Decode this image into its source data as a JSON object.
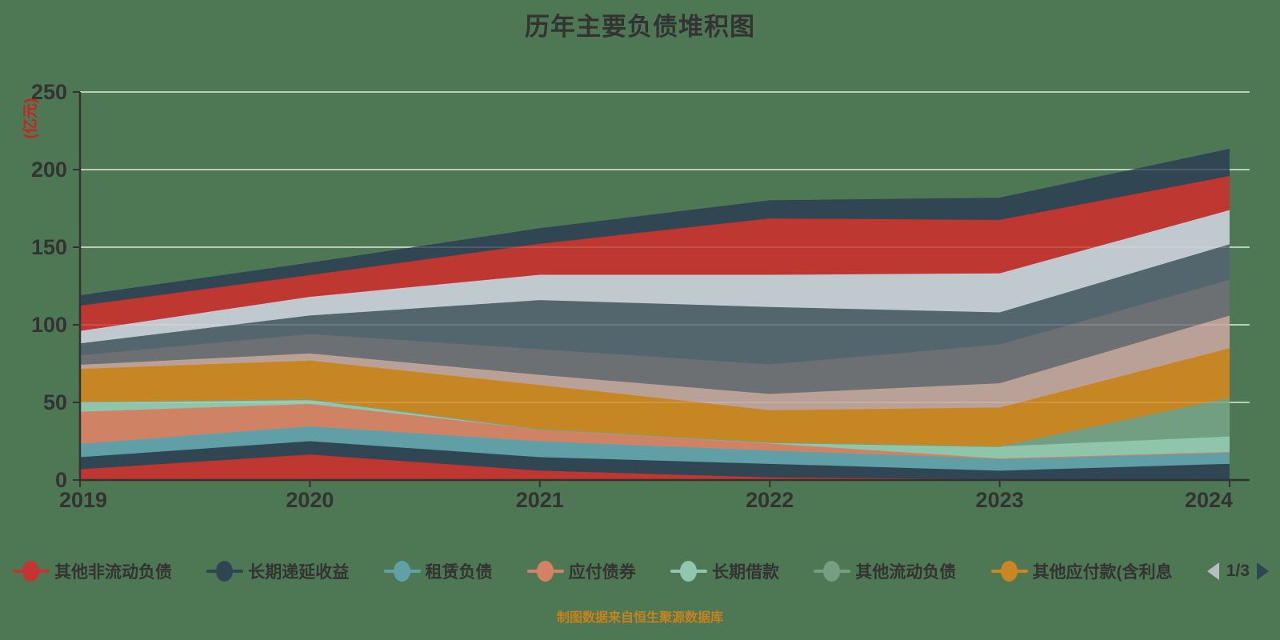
{
  "title": "历年主要负债堆积图",
  "footer_credit": "制图数据来自恒生聚源数据库",
  "y_axis": {
    "unit_label": "(亿元)",
    "unit_color": "#d01f1f",
    "ticks": [
      0,
      50,
      100,
      150,
      200,
      250
    ],
    "max": 250
  },
  "x_axis": {
    "labels": [
      "2019",
      "2020",
      "2021",
      "2022",
      "2023",
      "2024"
    ]
  },
  "legend": {
    "page_indicator": "1/3",
    "prev_icon": "left-triangle",
    "next_icon": "right-triangle",
    "visible_items": [
      {
        "label": "其他非流动负债",
        "color": "#c23531"
      },
      {
        "label": "长期递延收益",
        "color": "#2f4554"
      },
      {
        "label": "租赁负债",
        "color": "#61a0a8"
      },
      {
        "label": "应付债券",
        "color": "#d48265"
      },
      {
        "label": "长期借款",
        "color": "#91c7ae"
      },
      {
        "label": "其他流动负债",
        "color": "#749f83"
      },
      {
        "label": "其他应付款(含利息",
        "color": "#ca8622"
      }
    ]
  },
  "chart_data": {
    "type": "area",
    "stacked": true,
    "title": "历年主要负债堆积图",
    "ylabel": "(亿元)",
    "ylim": [
      0,
      250
    ],
    "grid": true,
    "legend_position": "bottom",
    "categories": [
      "2019",
      "2020",
      "2021",
      "2022",
      "2023",
      "2024"
    ],
    "series": [
      {
        "name": "其他非流动负债",
        "color": "#c23531",
        "values": [
          6.9,
          16.4,
          6.0,
          1.7,
          0.3,
          0.3
        ]
      },
      {
        "name": "长期递延收益",
        "color": "#2f4554",
        "values": [
          7.8,
          8.6,
          8.7,
          8.7,
          5.7,
          10.1
        ]
      },
      {
        "name": "租赁负债",
        "color": "#61a0a8",
        "values": [
          8.6,
          9.6,
          10.3,
          8.6,
          7.8,
          7.6
        ]
      },
      {
        "name": "应付债券",
        "color": "#d48265",
        "values": [
          20.7,
          14.4,
          7.6,
          4.5,
          0.1,
          0.1
        ]
      },
      {
        "name": "长期借款",
        "color": "#91c7ae",
        "values": [
          6.0,
          2.5,
          0.1,
          0.7,
          7.7,
          9.9
        ]
      },
      {
        "name": "其他流动负债",
        "color": "#749f83",
        "values": [
          0.3,
          0.5,
          0.1,
          0.1,
          0.1,
          24.9
        ]
      },
      {
        "name": "其他应付款(含利息",
        "color": "#ca8622",
        "values": [
          21.3,
          25.0,
          28.4,
          20.7,
          25.0,
          32.0
        ]
      },
      {
        "name": "",
        "color": "#bda29a",
        "values": [
          2.6,
          4.5,
          6.5,
          10.4,
          15.6,
          21.0
        ]
      },
      {
        "name": "",
        "color": "#6e7074",
        "values": [
          6.1,
          12.5,
          16.5,
          19.0,
          25.0,
          23.0
        ]
      },
      {
        "name": "",
        "color": "#546570",
        "values": [
          7.7,
          12.0,
          31.7,
          37.1,
          20.7,
          23.0
        ]
      },
      {
        "name": "",
        "color": "#c4ccd3",
        "values": [
          8.0,
          12.0,
          16.3,
          20.7,
          25.1,
          22.0
        ]
      },
      {
        "name": "",
        "color": "#c23531",
        "values": [
          16.3,
          14.0,
          20.0,
          36.3,
          34.5,
          22.0
        ]
      },
      {
        "name": "",
        "color": "#2f4554",
        "values": [
          6.2,
          7.5,
          9.5,
          11.2,
          13.8,
          17.0
        ]
      }
    ],
    "note": "series 8-13 belong to legend pages 2/3 whose labels are not visible in the screenshot"
  }
}
